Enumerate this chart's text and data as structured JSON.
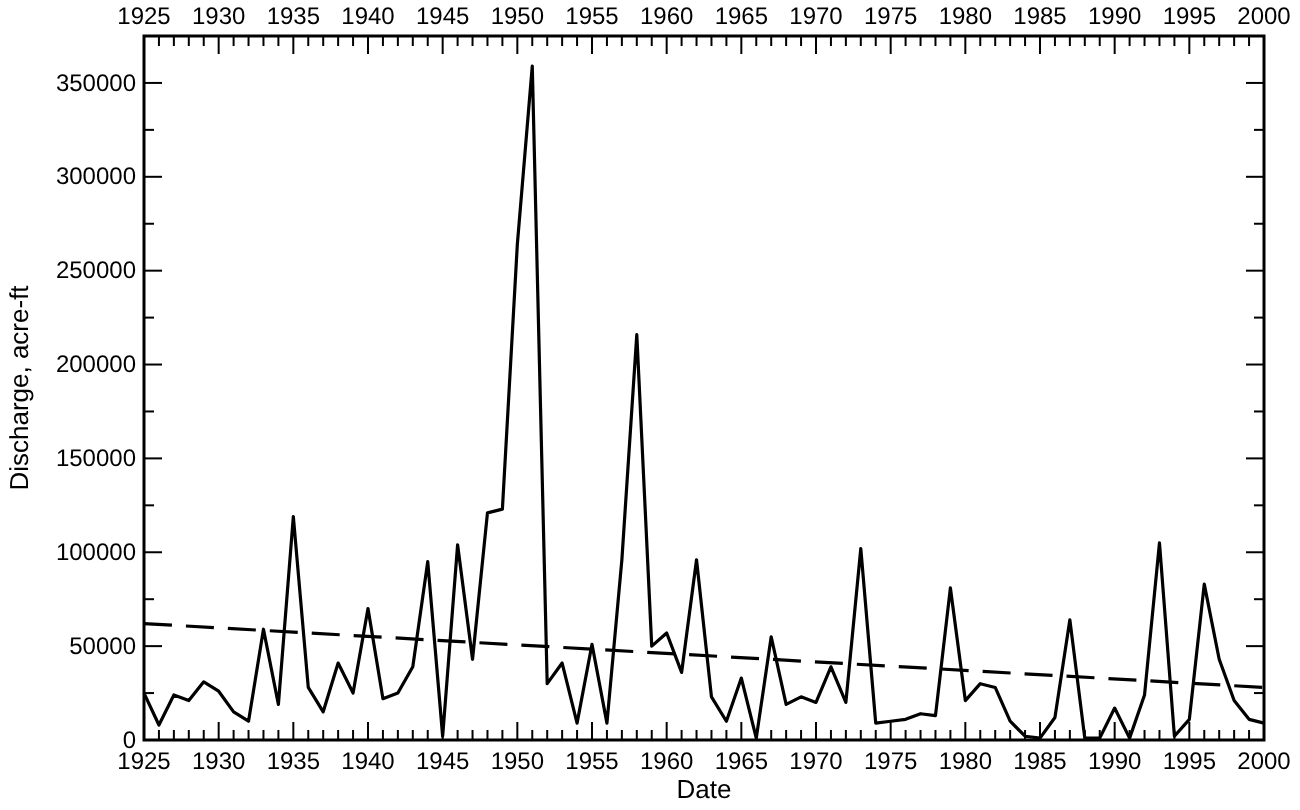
{
  "chart_data": {
    "type": "line",
    "xlabel": "Date",
    "ylabel": "Discharge, acre-ft",
    "x": [
      1925,
      1926,
      1927,
      1928,
      1929,
      1930,
      1931,
      1932,
      1933,
      1934,
      1935,
      1936,
      1937,
      1938,
      1939,
      1940,
      1941,
      1942,
      1943,
      1944,
      1945,
      1946,
      1947,
      1948,
      1949,
      1950,
      1951,
      1952,
      1953,
      1954,
      1955,
      1956,
      1957,
      1958,
      1959,
      1960,
      1961,
      1962,
      1963,
      1964,
      1965,
      1966,
      1967,
      1968,
      1969,
      1970,
      1971,
      1972,
      1973,
      1974,
      1975,
      1976,
      1977,
      1978,
      1979,
      1980,
      1981,
      1982,
      1983,
      1984,
      1985,
      1986,
      1987,
      1988,
      1989,
      1990,
      1991,
      1992,
      1993,
      1994,
      1995,
      1996,
      1997,
      1998,
      1999,
      2000
    ],
    "series": [
      {
        "color": "#000000",
        "line_style": "solid",
        "values": [
          25000,
          8000,
          24000,
          21000,
          31000,
          26000,
          15000,
          10000,
          59000,
          19000,
          119000,
          28000,
          15000,
          41000,
          25000,
          70000,
          22000,
          25000,
          39000,
          95000,
          2000,
          104000,
          43000,
          121000,
          123000,
          264000,
          359000,
          30000,
          41000,
          9000,
          51000,
          9000,
          96000,
          216000,
          50000,
          57000,
          36000,
          96000,
          23000,
          10000,
          33000,
          1000,
          55000,
          19000,
          23000,
          20000,
          39000,
          20000,
          102000,
          9000,
          10000,
          11000,
          14000,
          13000,
          81000,
          21000,
          30000,
          28000,
          10000,
          2000,
          1000,
          12000,
          64000,
          1000,
          1000,
          17000,
          1000,
          24000,
          105000,
          2000,
          11000,
          83000,
          43000,
          21000,
          11000,
          9000
        ]
      },
      {
        "type": "line",
        "color": "#000000",
        "line_style": "dashed",
        "x": [
          1925,
          2000
        ],
        "values": [
          62000,
          28000
        ]
      }
    ],
    "xlim": [
      1925,
      2000
    ],
    "xticks": [
      1925,
      {
        "value": 1926,
        "label": null
      },
      {
        "value": 1927,
        "label": null
      },
      {
        "value": 1928,
        "label": null
      },
      {
        "value": 1929,
        "label": null
      },
      1930,
      {
        "value": 1931,
        "label": null
      },
      {
        "value": 1932,
        "label": null
      },
      {
        "value": 1933,
        "label": null
      },
      {
        "value": 1934,
        "label": null
      },
      1935,
      {
        "value": 1936,
        "label": null
      },
      {
        "value": 1937,
        "label": null
      },
      {
        "value": 1938,
        "label": null
      },
      {
        "value": 1939,
        "label": null
      },
      1940,
      {
        "value": 1941,
        "label": null
      },
      {
        "value": 1942,
        "label": null
      },
      {
        "value": 1943,
        "label": null
      },
      {
        "value": 1944,
        "label": null
      },
      1945,
      {
        "value": 1946,
        "label": null
      },
      {
        "value": 1947,
        "label": null
      },
      {
        "value": 1948,
        "label": null
      },
      {
        "value": 1949,
        "label": null
      },
      1950,
      {
        "value": 1951,
        "label": null
      },
      {
        "value": 1952,
        "label": null
      },
      {
        "value": 1953,
        "label": null
      },
      {
        "value": 1954,
        "label": null
      },
      1955,
      {
        "value": 1956,
        "label": null
      },
      {
        "value": 1957,
        "label": null
      },
      {
        "value": 1958,
        "label": null
      },
      {
        "value": 1959,
        "label": null
      },
      1960,
      {
        "value": 1961,
        "label": null
      },
      {
        "value": 1962,
        "label": null
      },
      {
        "value": 1963,
        "label": null
      },
      {
        "value": 1964,
        "label": null
      },
      1965,
      {
        "value": 1966,
        "label": null
      },
      {
        "value": 1967,
        "label": null
      },
      {
        "value": 1968,
        "label": null
      },
      {
        "value": 1969,
        "label": null
      },
      1970,
      {
        "value": 1971,
        "label": null
      },
      {
        "value": 1972,
        "label": null
      },
      {
        "value": 1973,
        "label": null
      },
      {
        "value": 1974,
        "label": null
      },
      1975,
      {
        "value": 1976,
        "label": null
      },
      {
        "value": 1977,
        "label": null
      },
      {
        "value": 1978,
        "label": null
      },
      {
        "value": 1979,
        "label": null
      },
      1980,
      {
        "value": 1981,
        "label": null
      },
      {
        "value": 1982,
        "label": null
      },
      {
        "value": 1983,
        "label": null
      },
      {
        "value": 1984,
        "label": null
      },
      1985,
      {
        "value": 1986,
        "label": null
      },
      {
        "value": 1987,
        "label": null
      },
      {
        "value": 1988,
        "label": null
      },
      {
        "value": 1989,
        "label": null
      },
      1990,
      {
        "value": 1991,
        "label": null
      },
      {
        "value": 1992,
        "label": null
      },
      {
        "value": 1993,
        "label": null
      },
      {
        "value": 1994,
        "label": null
      },
      1995,
      {
        "value": 1996,
        "label": null
      },
      {
        "value": 1997,
        "label": null
      },
      {
        "value": 1998,
        "label": null
      },
      {
        "value": 1999,
        "label": null
      },
      2000
    ],
    "x2lim": [
      1925,
      2000
    ],
    "x2ticks": [
      1925,
      {
        "value": 1926,
        "label": null
      },
      {
        "value": 1927,
        "label": null
      },
      {
        "value": 1928,
        "label": null
      },
      {
        "value": 1929,
        "label": null
      },
      1930,
      {
        "value": 1931,
        "label": null
      },
      {
        "value": 1932,
        "label": null
      },
      {
        "value": 1933,
        "label": null
      },
      {
        "value": 1934,
        "label": null
      },
      1935,
      {
        "value": 1936,
        "label": null
      },
      {
        "value": 1937,
        "label": null
      },
      {
        "value": 1938,
        "label": null
      },
      {
        "value": 1939,
        "label": null
      },
      1940,
      {
        "value": 1941,
        "label": null
      },
      {
        "value": 1942,
        "label": null
      },
      {
        "value": 1943,
        "label": null
      },
      {
        "value": 1944,
        "label": null
      },
      1945,
      {
        "value": 1946,
        "label": null
      },
      {
        "value": 1947,
        "label": null
      },
      {
        "value": 1948,
        "label": null
      },
      {
        "value": 1949,
        "label": null
      },
      1950,
      {
        "value": 1951,
        "label": null
      },
      {
        "value": 1952,
        "label": null
      },
      {
        "value": 1953,
        "label": null
      },
      {
        "value": 1954,
        "label": null
      },
      1955,
      {
        "value": 1956,
        "label": null
      },
      {
        "value": 1957,
        "label": null
      },
      {
        "value": 1958,
        "label": null
      },
      {
        "value": 1959,
        "label": null
      },
      1960,
      {
        "value": 1961,
        "label": null
      },
      {
        "value": 1962,
        "label": null
      },
      {
        "value": 1963,
        "label": null
      },
      {
        "value": 1964,
        "label": null
      },
      1965,
      {
        "value": 1966,
        "label": null
      },
      {
        "value": 1967,
        "label": null
      },
      {
        "value": 1968,
        "label": null
      },
      {
        "value": 1969,
        "label": null
      },
      1970,
      {
        "value": 1971,
        "label": null
      },
      {
        "value": 1972,
        "label": null
      },
      {
        "value": 1973,
        "label": null
      },
      {
        "value": 1974,
        "label": null
      },
      1975,
      {
        "value": 1976,
        "label": null
      },
      {
        "value": 1977,
        "label": null
      },
      {
        "value": 1978,
        "label": null
      },
      {
        "value": 1979,
        "label": null
      },
      1980,
      {
        "value": 1981,
        "label": null
      },
      {
        "value": 1982,
        "label": null
      },
      {
        "value": 1983,
        "label": null
      },
      {
        "value": 1984,
        "label": null
      },
      1985,
      {
        "value": 1986,
        "label": null
      },
      {
        "value": 1987,
        "label": null
      },
      {
        "value": 1988,
        "label": null
      },
      {
        "value": 1989,
        "label": null
      },
      1990,
      {
        "value": 1991,
        "label": null
      },
      {
        "value": 1992,
        "label": null
      },
      {
        "value": 1993,
        "label": null
      },
      {
        "value": 1994,
        "label": null
      },
      1995,
      {
        "value": 1996,
        "label": null
      },
      {
        "value": 1997,
        "label": null
      },
      {
        "value": 1998,
        "label": null
      },
      {
        "value": 1999,
        "label": null
      },
      2000
    ],
    "ylim": [
      0,
      375000
    ],
    "yticks": [
      0,
      {
        "value": 25000,
        "label": null
      },
      50000,
      {
        "value": 75000,
        "label": null
      },
      100000,
      {
        "value": 125000,
        "label": null
      },
      150000,
      {
        "value": 175000,
        "label": null
      },
      200000,
      {
        "value": 225000,
        "label": null
      },
      250000,
      {
        "value": 275000,
        "label": null
      },
      300000,
      {
        "value": 325000,
        "label": null
      },
      350000
    ],
    "grid": false,
    "marker": "none"
  }
}
